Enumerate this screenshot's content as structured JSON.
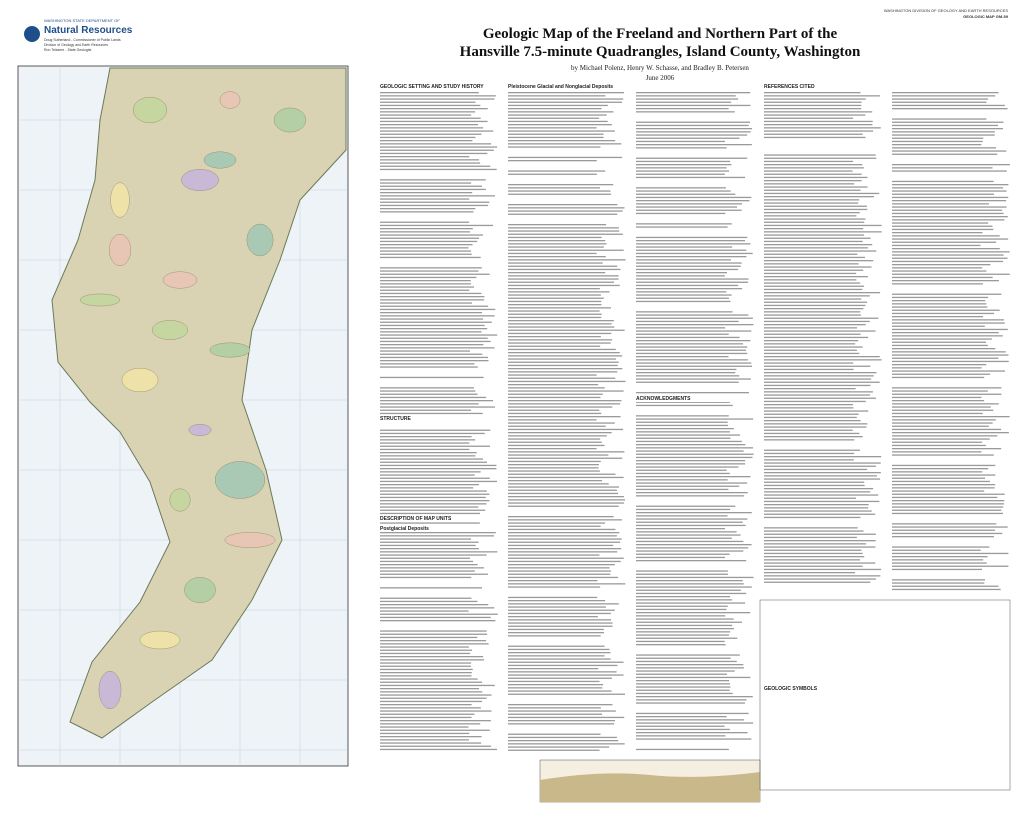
{
  "header": {
    "agency_line": "WASHINGTON STATE DEPARTMENT OF",
    "agency": "Natural Resources",
    "commissioner": "Doug Sutherland - Commissioner of Public Lands",
    "division": "Division of Geology and Earth Resources",
    "geologist": "Ron Teissere - State Geologist",
    "series": "WASHINGTON DIVISION OF GEOLOGY AND EARTH RESOURCES",
    "map_number": "GEOLOGIC MAP GM-59"
  },
  "title": {
    "line1": "Geologic Map of the Freeland and Northern Part of the",
    "line2": "Hansville 7.5-minute Quadrangles, Island County, Washington",
    "authors": "by Michael Polenz, Henry W. Schasse, and Bradley B. Petersen",
    "date": "June 2006"
  },
  "sections": [
    "GEOLOGIC SETTING AND STUDY HISTORY",
    "STRUCTURE",
    "DESCRIPTION OF MAP UNITS",
    "Postglacial Deposits",
    "Pleistocene Glacial and Nonglacial Deposits",
    "ACKNOWLEDGMENTS",
    "REFERENCES CITED",
    "GEOLOGIC SYMBOLS"
  ]
}
